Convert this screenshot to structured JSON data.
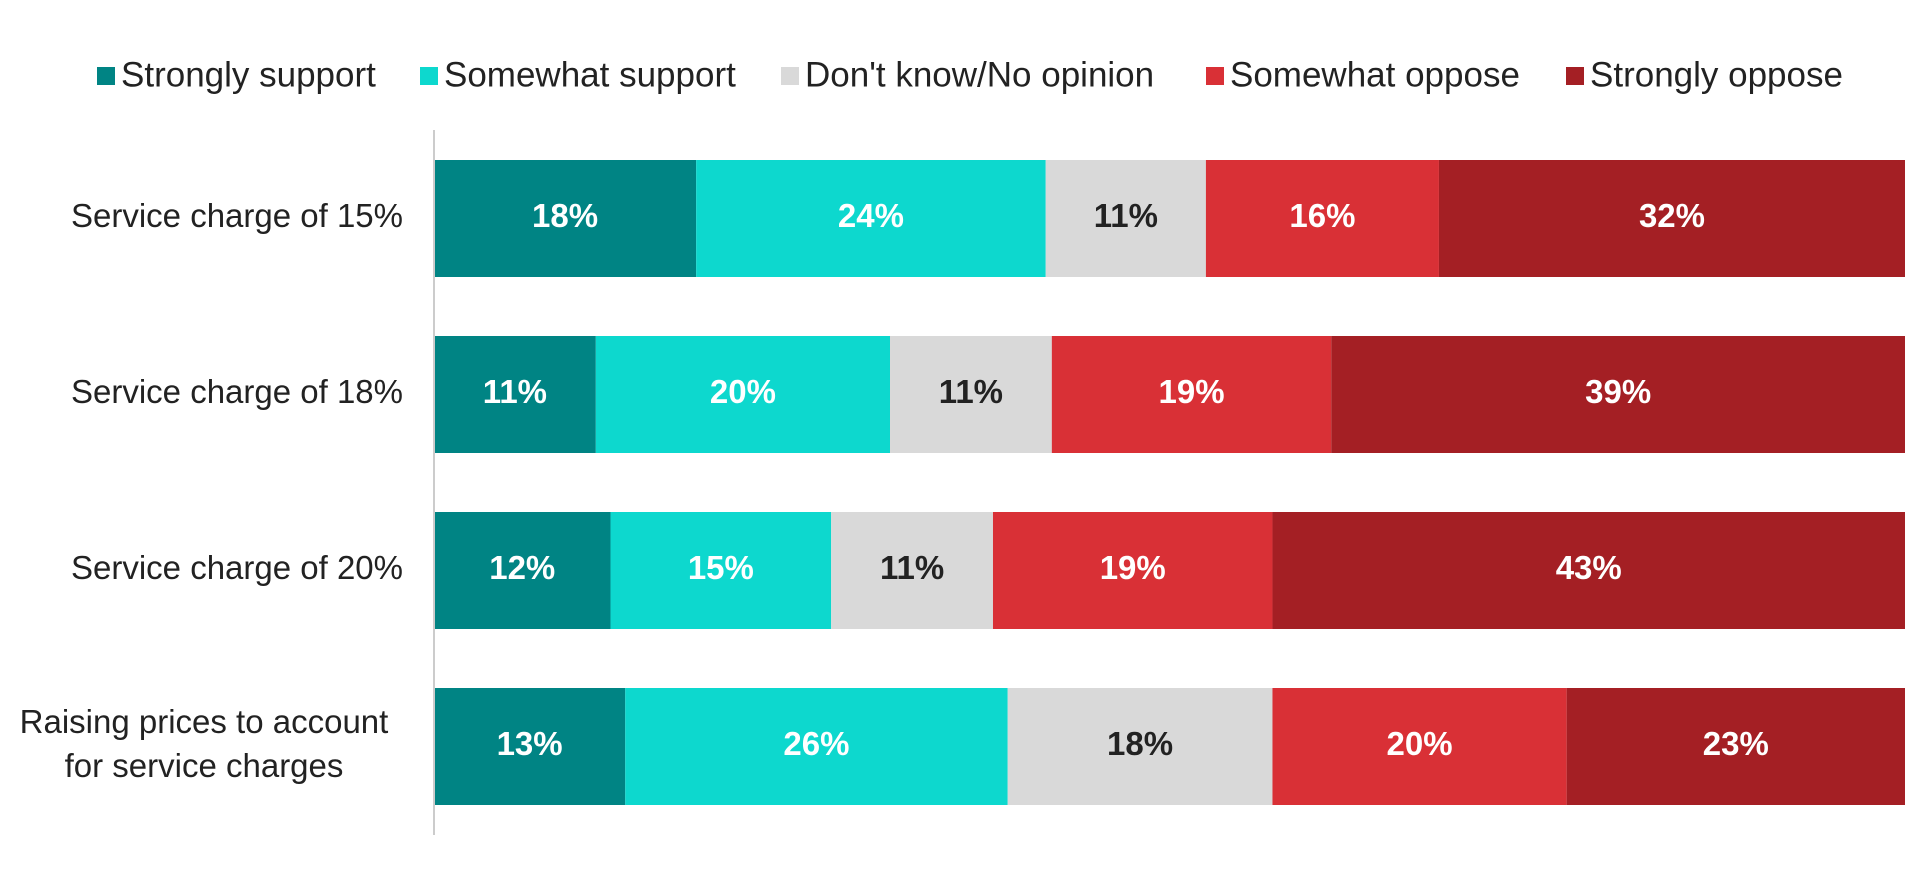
{
  "chart_data": {
    "type": "bar",
    "orientation": "horizontal",
    "stacked": true,
    "normalized_100": true,
    "legend_position": "top",
    "grid": false,
    "xlim": [
      0,
      100
    ],
    "categories": [
      [
        "Service charge of 15%"
      ],
      [
        "Service charge of 18%"
      ],
      [
        "Service charge of 20%"
      ],
      [
        "Raising prices to account",
        "for service charges"
      ]
    ],
    "series": [
      {
        "name": "Strongly support",
        "color": "#008484",
        "label_color": "#ffffff",
        "values": [
          18,
          11,
          12,
          13
        ],
        "labels": [
          "18%",
          "11%",
          "12%",
          "13%"
        ]
      },
      {
        "name": "Somewhat support",
        "color": "#0dd8ce",
        "label_color": "#ffffff",
        "values": [
          24,
          20,
          15,
          26
        ],
        "labels": [
          "24%",
          "20%",
          "15%",
          "26%"
        ]
      },
      {
        "name": "Don't know/No opinion",
        "color": "#d9d9d9",
        "label_color": "#222222",
        "values": [
          11,
          11,
          11,
          18
        ],
        "labels": [
          "11%",
          "11%",
          "11%",
          "18%"
        ]
      },
      {
        "name": "Somewhat oppose",
        "color": "#d93036",
        "label_color": "#ffffff",
        "values": [
          16,
          19,
          19,
          20
        ],
        "labels": [
          "16%",
          "19%",
          "19%",
          "20%"
        ]
      },
      {
        "name": "Strongly oppose",
        "color": "#a41f24",
        "label_color": "#ffffff",
        "values": [
          32,
          39,
          43,
          23
        ],
        "labels": [
          "32%",
          "39%",
          "43%",
          "23%"
        ]
      }
    ]
  }
}
